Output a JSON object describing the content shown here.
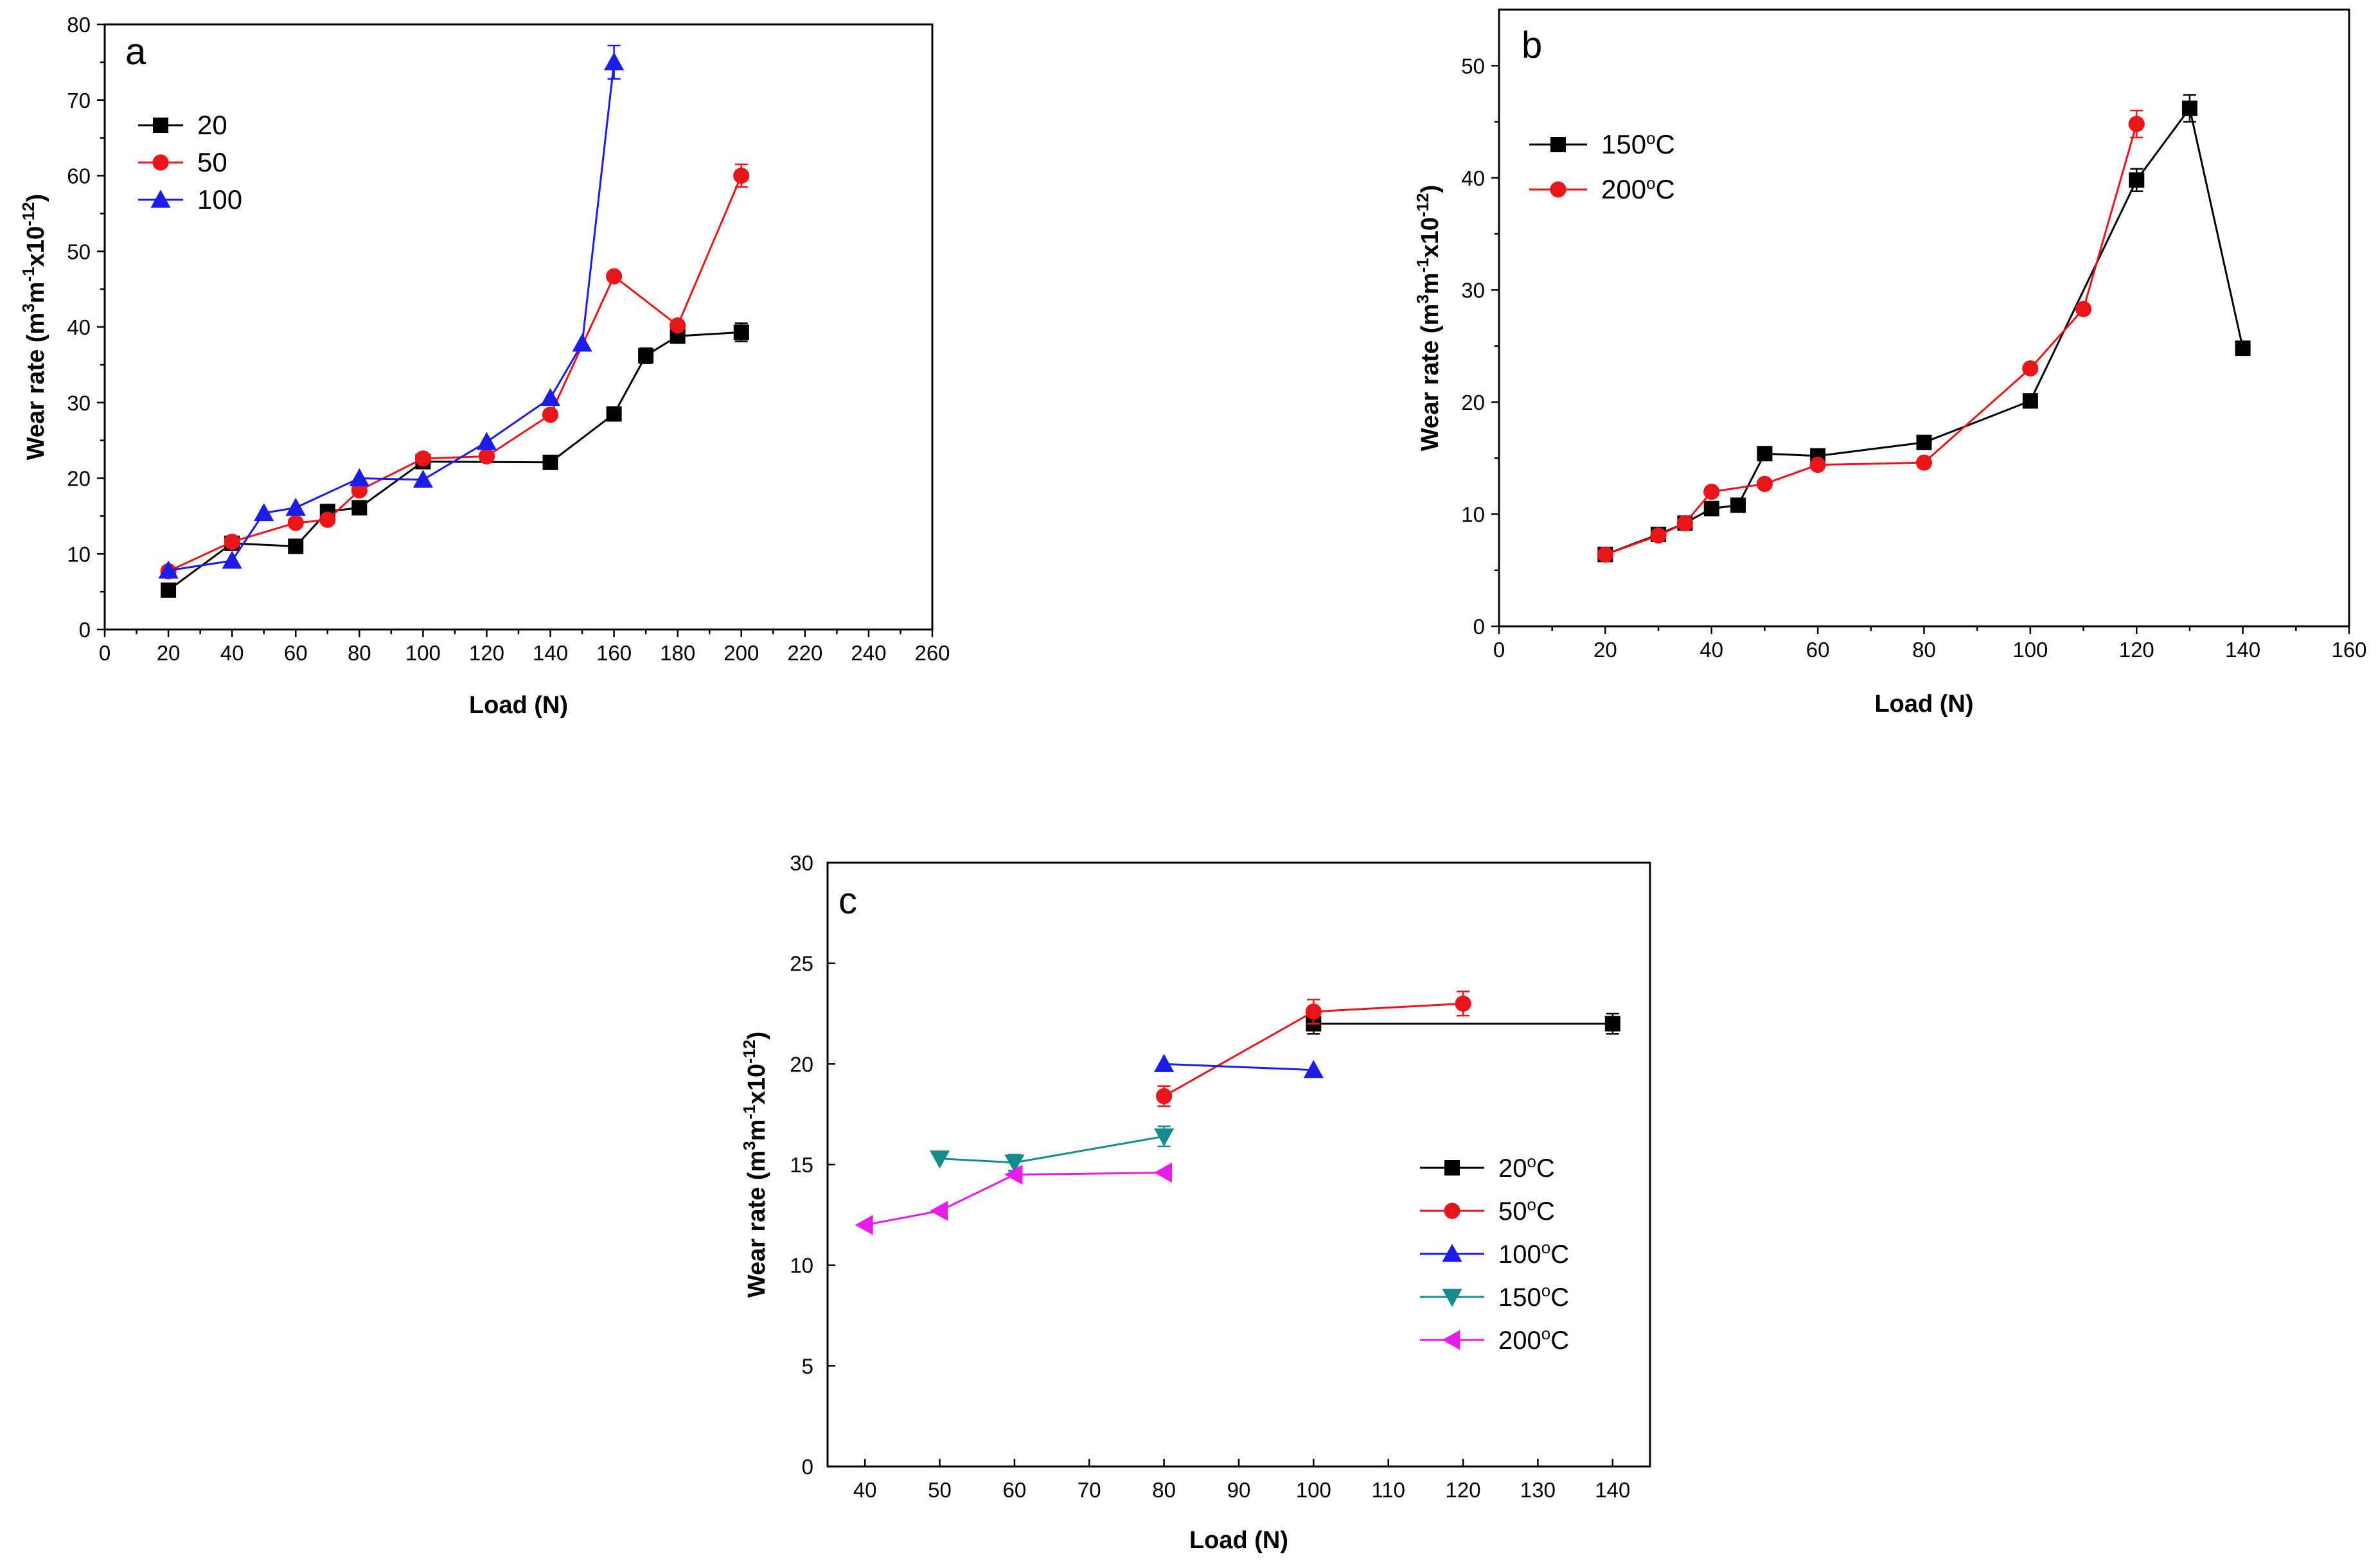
{
  "chart_data": [
    {
      "type": "line",
      "panel_label": "a",
      "xlabel": "Load (N)",
      "ylabel_parts": [
        "Wear rate (m",
        "3",
        "m",
        "-1",
        "x10",
        "-12",
        ")"
      ],
      "xlim": [
        0,
        260
      ],
      "ylim": [
        0,
        80
      ],
      "xticks": [
        0,
        20,
        40,
        60,
        80,
        100,
        120,
        140,
        160,
        180,
        200,
        220,
        240,
        260
      ],
      "xtick_labels": [
        "0",
        "20",
        "40",
        "60",
        "80",
        "100",
        "120",
        "140",
        "160",
        "180",
        "200",
        "220",
        "240",
        "260"
      ],
      "yticks": [
        0,
        10,
        20,
        30,
        40,
        50,
        60,
        70,
        80
      ],
      "ytick_labels": [
        "0",
        "10",
        "20",
        "30",
        "40",
        "50",
        "60",
        "70",
        "80"
      ],
      "legend_position": "top-left",
      "series": [
        {
          "name": "20",
          "color": "#000000",
          "marker": "square",
          "x": [
            20,
            40,
            60,
            70,
            80,
            100,
            140,
            160,
            170,
            180,
            200
          ],
          "y": [
            5.2,
            11.4,
            11.0,
            15.6,
            16.1,
            22.2,
            22.1,
            28.5,
            36.2,
            38.8,
            39.3
          ],
          "err": [
            0,
            0,
            0,
            0,
            0,
            0,
            0,
            0,
            1.0,
            0,
            1.2
          ]
        },
        {
          "name": "50",
          "color": "#e8161b",
          "marker": "circle",
          "x": [
            20,
            40,
            60,
            70,
            80,
            100,
            120,
            140,
            160,
            180,
            200
          ],
          "y": [
            7.7,
            11.6,
            14.1,
            14.5,
            18.4,
            22.6,
            22.9,
            28.4,
            46.7,
            40.2,
            60.0
          ],
          "err": [
            0,
            0,
            0,
            0,
            0,
            0,
            0,
            0,
            0,
            0,
            1.5
          ]
        },
        {
          "name": "100",
          "color": "#1c1ce8",
          "marker": "triangle-up",
          "x": [
            20,
            40,
            50,
            60,
            80,
            100,
            120,
            140,
            150,
            160
          ],
          "y": [
            7.8,
            9.1,
            15.4,
            16.1,
            20.0,
            19.8,
            24.8,
            30.6,
            37.8,
            75.0
          ],
          "err": [
            0,
            0,
            0,
            0,
            0,
            0,
            0,
            0,
            0,
            2.2
          ]
        }
      ]
    },
    {
      "type": "line",
      "panel_label": "b",
      "xlabel": "Load (N)",
      "ylabel_parts": [
        "Wear rate (m",
        "3",
        "m",
        "-1",
        "x10",
        "-12",
        ")"
      ],
      "xlim": [
        0,
        160
      ],
      "ylim": [
        0,
        55
      ],
      "xticks": [
        0,
        20,
        40,
        60,
        80,
        100,
        120,
        140,
        160
      ],
      "xtick_labels": [
        "0",
        "20",
        "40",
        "60",
        "80",
        "100",
        "120",
        "140",
        "160"
      ],
      "yticks": [
        0,
        10,
        20,
        30,
        40,
        50
      ],
      "ytick_labels": [
        "0",
        "10",
        "20",
        "30",
        "40",
        "50"
      ],
      "legend_position": "top-left",
      "series": [
        {
          "name_main": "150",
          "name_sup": "o",
          "name_unit": "C",
          "color": "#000000",
          "marker": "square",
          "x": [
            20,
            30,
            35,
            40,
            45,
            50,
            60,
            80,
            100,
            120,
            130,
            140
          ],
          "y": [
            6.4,
            8.2,
            9.2,
            10.5,
            10.8,
            15.4,
            15.2,
            16.4,
            20.1,
            39.8,
            46.2,
            24.8
          ],
          "err": [
            0,
            0,
            0,
            0,
            0,
            0,
            0,
            0,
            0,
            1.0,
            1.2,
            0.6
          ]
        },
        {
          "name_main": "200",
          "name_sup": "o",
          "name_unit": "C",
          "color": "#e8161b",
          "marker": "circle",
          "x": [
            20,
            30,
            35,
            40,
            50,
            60,
            80,
            100,
            110,
            120
          ],
          "y": [
            6.4,
            8.1,
            9.2,
            12.0,
            12.7,
            14.4,
            14.6,
            23.0,
            28.3,
            44.8
          ],
          "err": [
            0,
            0,
            0,
            0,
            0,
            0,
            0,
            0,
            0,
            1.2
          ]
        }
      ]
    },
    {
      "type": "line",
      "panel_label": "c",
      "xlabel": "Load (N)",
      "ylabel_parts": [
        "Wear rate (m",
        "3",
        "m",
        "-1",
        "x10",
        "-12",
        ")"
      ],
      "xlim": [
        35,
        145
      ],
      "ylim": [
        0,
        30
      ],
      "xticks": [
        40,
        50,
        60,
        70,
        80,
        90,
        100,
        110,
        120,
        130,
        140
      ],
      "xtick_labels": [
        "40",
        "50",
        "60",
        "70",
        "80",
        "90",
        "100",
        "110",
        "120",
        "130",
        "140"
      ],
      "yticks": [
        0,
        5,
        10,
        15,
        20,
        25,
        30
      ],
      "ytick_labels": [
        "0",
        "5",
        "10",
        "15",
        "20",
        "25",
        "30"
      ],
      "legend_position": "center-right",
      "series": [
        {
          "name_main": "20",
          "name_sup": "o",
          "name_unit": "C",
          "color": "#000000",
          "marker": "square",
          "x": [
            100,
            140
          ],
          "y": [
            22.0,
            22.0
          ],
          "err": [
            0.5,
            0.5
          ]
        },
        {
          "name_main": "50",
          "name_sup": "o",
          "name_unit": "C",
          "color": "#e8161b",
          "marker": "circle",
          "x": [
            80,
            100,
            120
          ],
          "y": [
            18.4,
            22.6,
            23.0
          ],
          "err": [
            0.5,
            0.6,
            0.6
          ]
        },
        {
          "name_main": "100",
          "name_sup": "o",
          "name_unit": "C",
          "color": "#1c1ce8",
          "marker": "triangle-up",
          "x": [
            80,
            100
          ],
          "y": [
            20.0,
            19.7
          ],
          "err": [
            0,
            0
          ]
        },
        {
          "name_main": "150",
          "name_sup": "o",
          "name_unit": "C",
          "color": "#158c8c",
          "marker": "triangle-down",
          "x": [
            50,
            60,
            80
          ],
          "y": [
            15.3,
            15.1,
            16.4
          ],
          "err": [
            0,
            0.4,
            0.5
          ]
        },
        {
          "name_main": "200",
          "name_sup": "o",
          "name_unit": "C",
          "color": "#e81ce8",
          "marker": "triangle-left",
          "x": [
            40,
            50,
            60,
            80
          ],
          "y": [
            12.0,
            12.7,
            14.5,
            14.6
          ],
          "err": [
            0,
            0,
            0,
            0
          ]
        }
      ]
    }
  ]
}
